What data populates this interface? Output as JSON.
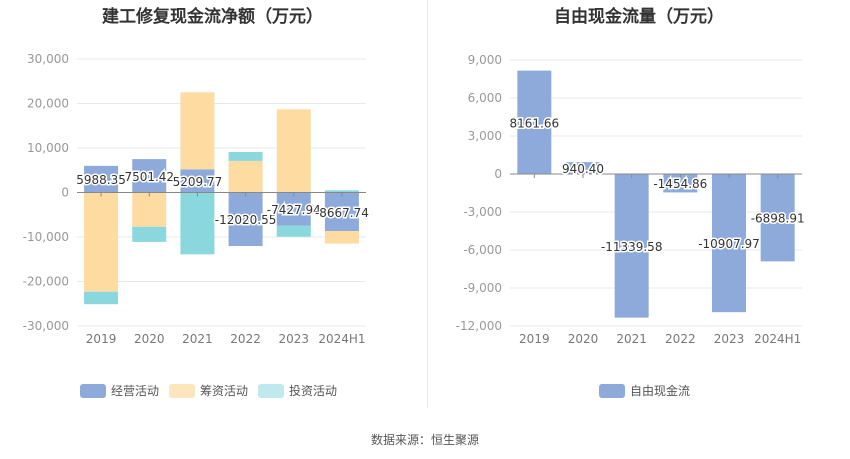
{
  "source_label": "数据来源：恒生聚源",
  "chart_data": [
    {
      "type": "bar",
      "stacked": true,
      "title": "建工修复现金流净额（万元）",
      "categories": [
        "2019",
        "2020",
        "2021",
        "2022",
        "2023",
        "2024H1"
      ],
      "ylim": [
        -30000,
        30000
      ],
      "yticks": [
        30000,
        20000,
        10000,
        0,
        -10000,
        -20000,
        -30000
      ],
      "ytick_labels": [
        "30,000",
        "20,000",
        "10,000",
        "0",
        "-10,000",
        "-20,000",
        "-30,000"
      ],
      "grid": true,
      "legend_position": "bottom-left",
      "series": [
        {
          "name": "经营活动",
          "color": "#8eaadb",
          "values": [
            5988.35,
            7501.42,
            5209.77,
            -12020.55,
            -7427.94,
            -8667.74
          ]
        },
        {
          "name": "筹资活动",
          "color": "#fddba1",
          "values": [
            -22300,
            -7700,
            17300,
            7100,
            18700,
            -2800
          ]
        },
        {
          "name": "投资活动",
          "color": "#8ad8dd",
          "values": [
            -2800,
            -3400,
            -13900,
            2000,
            -2500,
            500
          ]
        }
      ],
      "data_labels": [
        "5988.35",
        "7501.42",
        "5209.77",
        "-12020.55",
        "-7427.94",
        "-8667.74"
      ]
    },
    {
      "type": "bar",
      "title": "自由现金流量（万元）",
      "categories": [
        "2019",
        "2020",
        "2021",
        "2022",
        "2023",
        "2024H1"
      ],
      "ylim": [
        -12000,
        9000
      ],
      "yticks": [
        9000,
        6000,
        3000,
        0,
        -3000,
        -6000,
        -9000,
        -12000
      ],
      "ytick_labels": [
        "9,000",
        "6,000",
        "3,000",
        "0",
        "-3,000",
        "-6,000",
        "-9,000",
        "-12,000"
      ],
      "grid": true,
      "legend_position": "bottom-center",
      "series": [
        {
          "name": "自由现金流",
          "color": "#8eaadb",
          "values": [
            8161.66,
            940.4,
            -11339.58,
            -1454.86,
            -10907.97,
            -6898.91
          ]
        }
      ],
      "data_labels": [
        "8161.66",
        "940.40",
        "-11339.58",
        "-1454.86",
        "-10907.97",
        "-6898.91"
      ]
    }
  ]
}
